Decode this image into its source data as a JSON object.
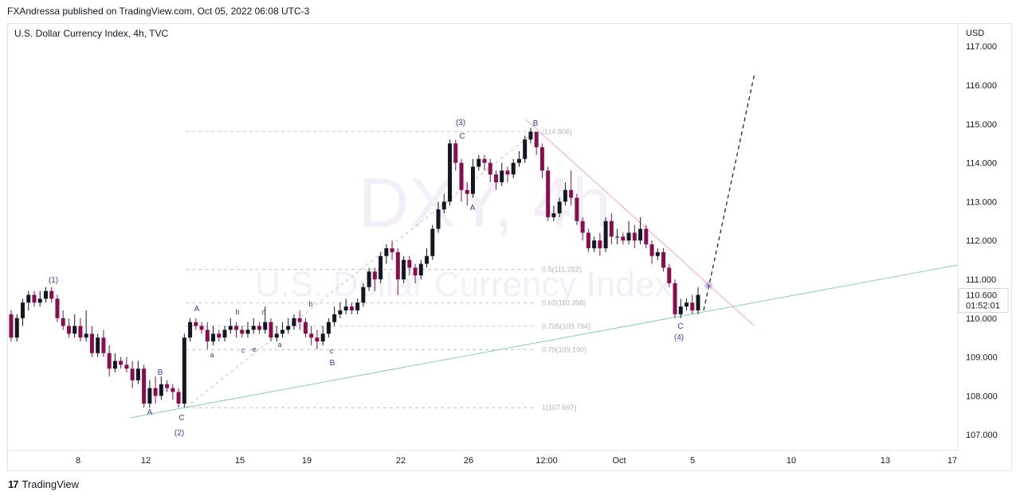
{
  "header": {
    "published": "FXAndressa published on TradingView.com, Oct 05, 2022 06:08 UTC-3",
    "symbol_line": "U.S. Dollar Currency Index, 4h, TVC"
  },
  "watermark": {
    "ticker": "DXY, 4h",
    "name": "U.S. Dollar Currency Index"
  },
  "footer": {
    "logo_mark": "17",
    "logo_text": "TradingView"
  },
  "colors": {
    "bull": "#131722",
    "bear": "#880e4f",
    "wave_label": "#3f3a99",
    "trend_resistance": "#f4a6bd",
    "trend_support": "#8fc8b5",
    "fib_line": "#b2b5be",
    "forecast": "#131722",
    "marker": "#7e57c2"
  },
  "chart_data": {
    "type": "candlestick",
    "title": "U.S. Dollar Currency Index, 4h, TVC",
    "currency": "USD",
    "ylim": [
      106.7,
      117.5
    ],
    "y_ticks": [
      "117.000",
      "116.000",
      "115.000",
      "114.000",
      "113.000",
      "112.000",
      "111.000",
      "110.000",
      "109.000",
      "108.000",
      "107.000"
    ],
    "x_ticks": [
      "8",
      "12",
      "15",
      "19",
      "22",
      "26",
      "12:00",
      "Oct",
      "5",
      "10",
      "13",
      "17"
    ],
    "last_price": "110.600",
    "countdown": "01:52:01",
    "candles": [
      [
        110.1,
        109.5,
        110.2,
        109.4
      ],
      [
        109.5,
        110.0,
        110.1,
        109.4
      ],
      [
        110.0,
        110.4,
        110.5,
        109.8
      ],
      [
        110.4,
        110.6,
        110.7,
        110.2
      ],
      [
        110.6,
        110.4,
        110.7,
        110.3
      ],
      [
        110.4,
        110.5,
        110.7,
        110.3
      ],
      [
        110.5,
        110.7,
        110.8,
        110.4
      ],
      [
        110.7,
        110.5,
        110.8,
        110.4
      ],
      [
        110.5,
        110.0,
        110.6,
        109.9
      ],
      [
        110.0,
        109.8,
        110.2,
        109.7
      ],
      [
        109.8,
        109.6,
        110.0,
        109.5
      ],
      [
        109.6,
        109.8,
        110.1,
        109.5
      ],
      [
        109.8,
        109.5,
        110.0,
        109.4
      ],
      [
        109.5,
        109.6,
        110.2,
        109.4
      ],
      [
        109.6,
        109.1,
        109.8,
        109.0
      ],
      [
        109.1,
        109.5,
        109.6,
        109.0
      ],
      [
        109.5,
        109.1,
        109.7,
        109.0
      ],
      [
        109.1,
        108.7,
        109.3,
        108.5
      ],
      [
        108.7,
        108.9,
        109.1,
        108.6
      ],
      [
        108.9,
        108.8,
        109.0,
        108.7
      ],
      [
        108.8,
        108.7,
        109.0,
        108.6
      ],
      [
        108.7,
        108.4,
        108.9,
        108.2
      ],
      [
        108.4,
        108.7,
        108.9,
        108.3
      ],
      [
        108.7,
        107.8,
        108.8,
        107.7
      ],
      [
        107.8,
        108.2,
        108.4,
        107.7
      ],
      [
        108.2,
        108.0,
        108.5,
        107.8
      ],
      [
        108.0,
        108.3,
        108.5,
        107.9
      ],
      [
        108.3,
        108.2,
        108.4,
        108.1
      ],
      [
        108.2,
        108.1,
        108.3,
        107.9
      ],
      [
        108.1,
        107.8,
        108.2,
        107.7
      ],
      [
        107.8,
        109.5,
        109.6,
        107.7
      ],
      [
        109.5,
        109.9,
        110.0,
        109.4
      ],
      [
        109.9,
        109.8,
        110.0,
        109.7
      ],
      [
        109.8,
        109.7,
        109.9,
        109.6
      ],
      [
        109.7,
        109.4,
        109.9,
        109.2
      ],
      [
        109.4,
        109.6,
        109.8,
        109.3
      ],
      [
        109.6,
        109.5,
        109.7,
        109.4
      ],
      [
        109.5,
        109.7,
        109.8,
        109.4
      ],
      [
        109.7,
        109.8,
        110.0,
        109.6
      ],
      [
        109.8,
        109.7,
        109.9,
        109.5
      ],
      [
        109.7,
        109.6,
        109.8,
        109.5
      ],
      [
        109.6,
        109.7,
        109.9,
        109.5
      ],
      [
        109.7,
        109.8,
        110.0,
        109.6
      ],
      [
        109.8,
        109.7,
        109.9,
        109.6
      ],
      [
        109.7,
        109.9,
        110.3,
        109.6
      ],
      [
        109.9,
        109.5,
        110.0,
        109.4
      ],
      [
        109.5,
        109.6,
        109.8,
        109.4
      ],
      [
        109.6,
        109.7,
        109.9,
        109.5
      ],
      [
        109.7,
        109.8,
        110.0,
        109.6
      ],
      [
        109.8,
        110.0,
        110.1,
        109.7
      ],
      [
        110.0,
        109.9,
        110.2,
        109.7
      ],
      [
        109.9,
        109.6,
        110.0,
        109.5
      ],
      [
        109.6,
        109.5,
        109.8,
        109.3
      ],
      [
        109.5,
        109.4,
        109.7,
        109.2
      ],
      [
        109.4,
        109.6,
        109.8,
        109.3
      ],
      [
        109.6,
        109.9,
        110.0,
        109.5
      ],
      [
        109.9,
        110.1,
        110.3,
        109.8
      ],
      [
        110.1,
        110.2,
        110.4,
        110.0
      ],
      [
        110.2,
        110.3,
        110.5,
        110.1
      ],
      [
        110.3,
        110.2,
        110.4,
        110.1
      ],
      [
        110.2,
        110.4,
        110.5,
        110.1
      ],
      [
        110.4,
        110.8,
        110.9,
        110.3
      ],
      [
        110.8,
        111.2,
        111.3,
        110.7
      ],
      [
        111.2,
        111.0,
        111.3,
        110.7
      ],
      [
        111.0,
        111.6,
        111.7,
        110.9
      ],
      [
        111.6,
        111.8,
        111.9,
        111.4
      ],
      [
        111.8,
        111.7,
        112.0,
        111.5
      ],
      [
        111.7,
        111.0,
        111.8,
        110.6
      ],
      [
        111.0,
        111.5,
        111.6,
        110.9
      ],
      [
        111.5,
        111.3,
        111.6,
        111.1
      ],
      [
        111.3,
        111.1,
        111.4,
        110.9
      ],
      [
        111.1,
        111.4,
        111.5,
        111.0
      ],
      [
        111.4,
        111.6,
        111.8,
        111.3
      ],
      [
        111.6,
        112.3,
        112.4,
        111.5
      ],
      [
        112.3,
        112.8,
        113.0,
        112.2
      ],
      [
        112.8,
        113.0,
        113.2,
        112.7
      ],
      [
        113.0,
        114.5,
        114.6,
        112.9
      ],
      [
        114.5,
        114.0,
        114.6,
        113.8
      ],
      [
        114.0,
        113.3,
        114.1,
        113.0
      ],
      [
        113.3,
        113.2,
        113.5,
        112.9
      ],
      [
        113.2,
        113.9,
        114.1,
        113.1
      ],
      [
        113.9,
        114.1,
        114.2,
        113.8
      ],
      [
        114.1,
        114.0,
        114.2,
        113.8
      ],
      [
        114.0,
        113.7,
        114.1,
        113.5
      ],
      [
        113.7,
        113.5,
        113.8,
        113.3
      ],
      [
        113.5,
        113.8,
        114.0,
        113.4
      ],
      [
        113.8,
        113.7,
        113.9,
        113.5
      ],
      [
        113.7,
        114.0,
        114.1,
        113.6
      ],
      [
        114.0,
        114.1,
        114.3,
        113.9
      ],
      [
        114.1,
        114.6,
        114.7,
        114.0
      ],
      [
        114.6,
        114.8,
        114.9,
        114.5
      ],
      [
        114.8,
        114.4,
        114.8,
        114.2
      ],
      [
        114.4,
        113.8,
        114.5,
        113.6
      ],
      [
        113.8,
        112.6,
        113.9,
        112.5
      ],
      [
        112.6,
        112.7,
        112.9,
        112.5
      ],
      [
        112.7,
        113.0,
        113.1,
        112.6
      ],
      [
        113.0,
        113.3,
        113.5,
        112.9
      ],
      [
        113.3,
        113.1,
        113.8,
        112.9
      ],
      [
        113.1,
        112.5,
        113.2,
        112.4
      ],
      [
        112.5,
        112.2,
        112.6,
        112.0
      ],
      [
        112.2,
        111.8,
        112.3,
        111.7
      ],
      [
        111.8,
        112.0,
        112.1,
        111.7
      ],
      [
        112.0,
        111.8,
        112.2,
        111.6
      ],
      [
        111.8,
        112.5,
        112.6,
        111.7
      ],
      [
        112.5,
        112.1,
        112.7,
        111.9
      ],
      [
        112.1,
        112.1,
        112.3,
        111.9
      ],
      [
        112.1,
        112.0,
        112.2,
        111.9
      ],
      [
        112.0,
        112.2,
        112.5,
        111.9
      ],
      [
        112.2,
        112.0,
        112.4,
        111.8
      ],
      [
        112.0,
        112.3,
        112.6,
        111.9
      ],
      [
        112.3,
        111.9,
        112.4,
        111.8
      ],
      [
        111.9,
        111.6,
        112.0,
        111.4
      ],
      [
        111.6,
        111.7,
        111.8,
        111.5
      ],
      [
        111.7,
        111.3,
        111.8,
        111.2
      ],
      [
        111.3,
        110.9,
        111.4,
        110.8
      ],
      [
        110.9,
        110.1,
        111.0,
        110.0
      ],
      [
        110.1,
        110.3,
        110.5,
        110.0
      ],
      [
        110.3,
        110.4,
        110.5,
        110.2
      ],
      [
        110.4,
        110.2,
        110.6,
        110.1
      ],
      [
        110.2,
        110.6,
        110.8,
        110.1
      ]
    ],
    "wave_labels": [
      "(1)",
      "A",
      "B",
      "C",
      "(2)",
      "A",
      "a",
      "b",
      "c",
      "e",
      "d",
      "a",
      "b",
      "c",
      "B",
      "(3)",
      "C",
      "A",
      "B",
      "C",
      "(4)"
    ],
    "fib_levels": [
      "(114.806)",
      "0.5(111.252)",
      "0.62(110.398)",
      "0.705(109.794)",
      "0.79(109.190)",
      "1(107.697)"
    ]
  }
}
